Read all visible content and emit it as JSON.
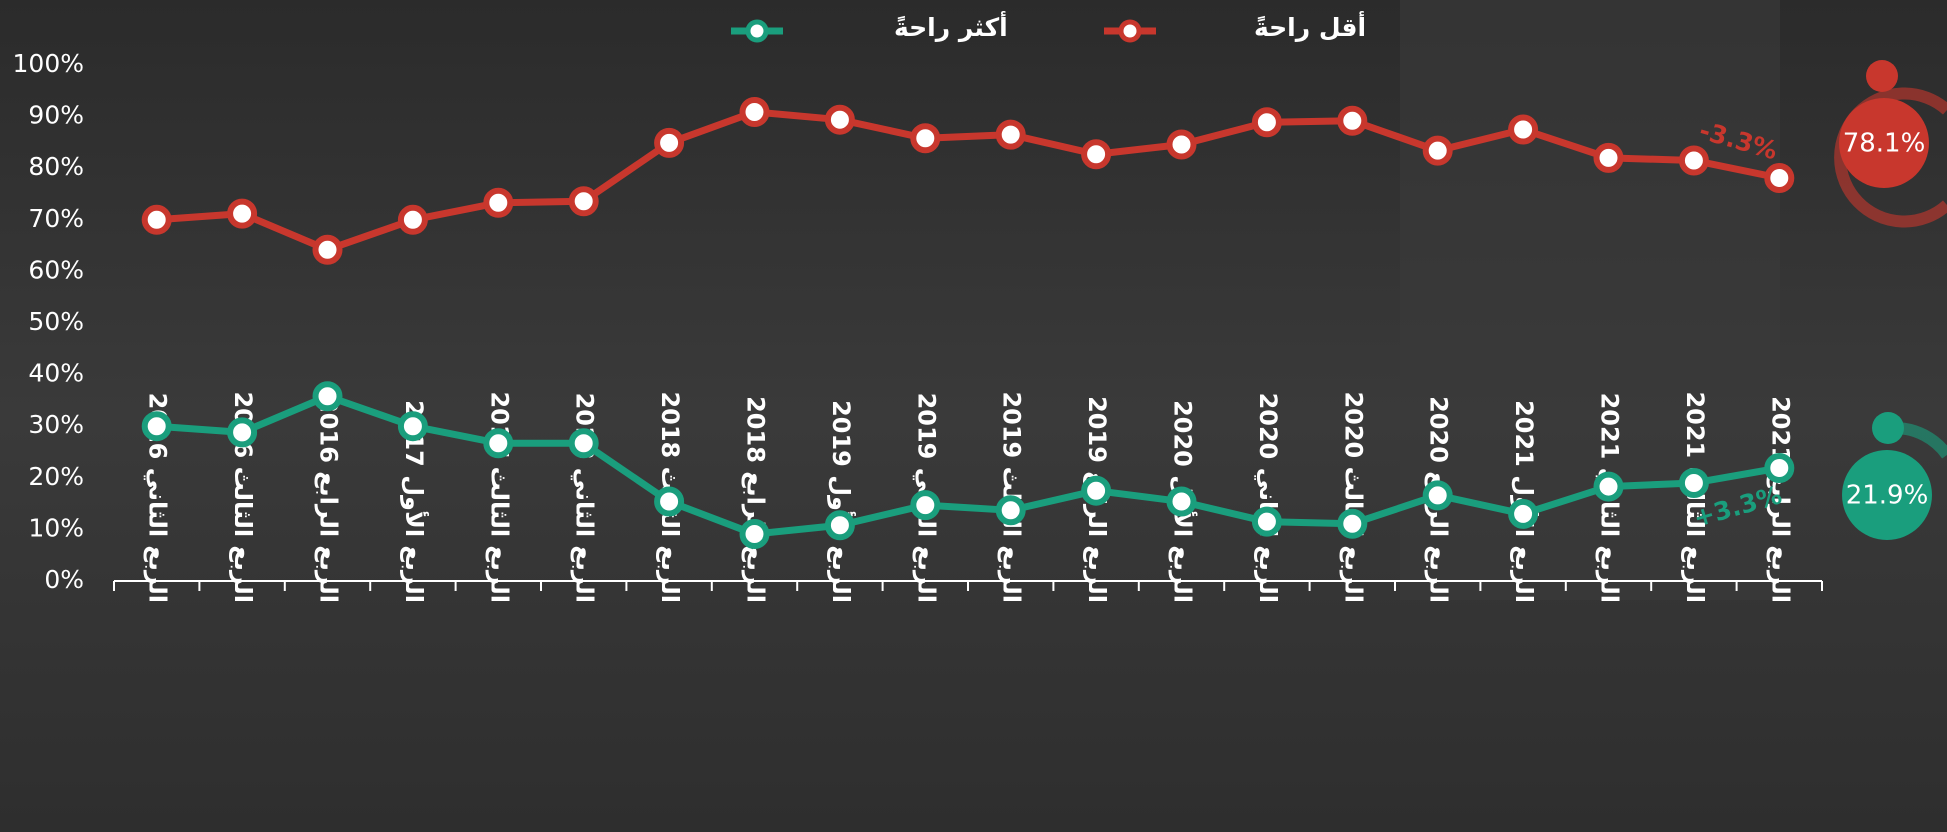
{
  "chart_data": {
    "type": "line",
    "categories": [
      "الربع الثاني 2016",
      "الربع الثالث 2016",
      "الربع الرابع 2016",
      "الربع الأول 2017",
      "الربع الثالث 2017",
      "الربع الثاني 2018",
      "الربع الثالث 2018",
      "الربع الرابع 2018",
      "الربع الأول 2019",
      "الربع الثاني 2019",
      "الربع الثالث 2019",
      "الربع الرابع 2019",
      "الربع الأول 2020",
      "الربع الثاني 2020",
      "الربع الثالث 2020",
      "الربع الرابع 2020",
      "الربع الأول 2021",
      "الربع الثاني 2021",
      "الربع الثالث 2021",
      "الربع الرابع 2021"
    ],
    "series": [
      {
        "name": "أقل راحةً",
        "color": "#c8372d",
        "values": [
          70.0,
          71.2,
          64.2,
          70.0,
          73.3,
          73.6,
          84.9,
          90.9,
          89.4,
          85.8,
          86.5,
          82.7,
          84.6,
          88.9,
          89.2,
          83.4,
          87.5,
          82.0,
          81.5,
          78.1
        ]
      },
      {
        "name": "أكثر راحةً",
        "color": "#1a9e7d",
        "values": [
          30.0,
          28.8,
          35.8,
          30.0,
          26.7,
          26.7,
          15.4,
          9.1,
          10.8,
          14.7,
          13.7,
          17.5,
          15.4,
          11.5,
          11.1,
          16.6,
          13.0,
          18.3,
          19.0,
          21.9
        ]
      }
    ],
    "annotations": [
      "-3.3%",
      "+3.3%",
      "78.1%",
      "21.9%"
    ],
    "ylim": [
      0,
      100
    ],
    "yticks": [
      {
        "value": 0,
        "label": "0%"
      },
      {
        "value": 10,
        "label": "10%"
      },
      {
        "value": 20,
        "label": "20%"
      },
      {
        "value": 30,
        "label": "30%"
      },
      {
        "value": 40,
        "label": "40%"
      },
      {
        "value": 50,
        "label": "50%"
      },
      {
        "value": 60,
        "label": "60%"
      },
      {
        "value": 70,
        "label": "70%"
      },
      {
        "value": 80,
        "label": "80%"
      },
      {
        "value": 90,
        "label": "90%"
      },
      {
        "value": 100,
        "label": "100%"
      }
    ],
    "grid": false
  }
}
